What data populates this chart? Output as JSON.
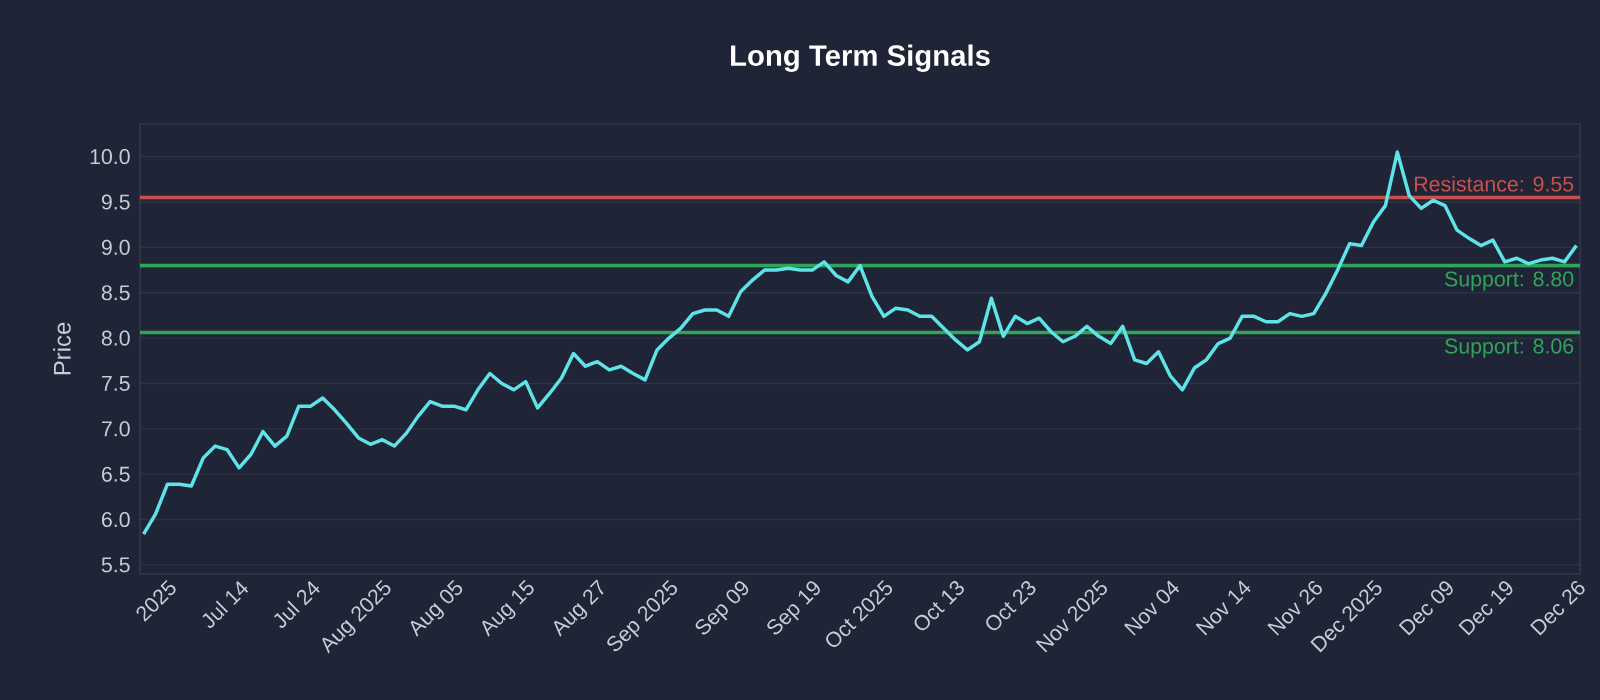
{
  "chart_data": {
    "type": "line",
    "title": "Long Term Signals",
    "ylabel": "Price",
    "categories": [
      null,
      null,
      "2025",
      null,
      null,
      null,
      null,
      null,
      "Jul 14",
      null,
      null,
      null,
      null,
      null,
      "Jul 24",
      null,
      null,
      null,
      null,
      null,
      "Aug 2025",
      null,
      null,
      null,
      null,
      null,
      "Aug 05",
      null,
      null,
      null,
      null,
      null,
      "Aug 15",
      null,
      null,
      null,
      null,
      null,
      "Aug 27",
      null,
      null,
      null,
      null,
      null,
      "Sep 2025",
      null,
      null,
      null,
      null,
      null,
      "Sep 09",
      null,
      null,
      null,
      null,
      null,
      "Sep 19",
      null,
      null,
      null,
      null,
      null,
      "Oct 2025",
      null,
      null,
      null,
      null,
      null,
      "Oct 13",
      null,
      null,
      null,
      null,
      null,
      "Oct 23",
      null,
      null,
      null,
      null,
      null,
      "Nov 2025",
      null,
      null,
      null,
      null,
      null,
      "Nov 04",
      null,
      null,
      null,
      null,
      null,
      "Nov 14",
      null,
      null,
      null,
      null,
      null,
      "Nov 26",
      null,
      null,
      null,
      null,
      "Dec 2025",
      null,
      null,
      null,
      null,
      null,
      "Dec 09",
      null,
      null,
      null,
      null,
      "Dec 19",
      null,
      null,
      null,
      null,
      null,
      "Dec 26"
    ],
    "values": [
      5.84,
      6.06,
      6.39,
      6.39,
      6.37,
      6.68,
      6.81,
      6.77,
      6.57,
      6.72,
      6.97,
      6.81,
      6.92,
      7.25,
      7.25,
      7.34,
      7.21,
      7.06,
      6.9,
      6.83,
      6.88,
      6.81,
      6.95,
      7.14,
      7.3,
      7.25,
      7.25,
      7.21,
      7.43,
      7.61,
      7.5,
      7.43,
      7.52,
      7.23,
      7.39,
      7.56,
      7.83,
      7.69,
      7.74,
      7.65,
      7.69,
      7.61,
      7.54,
      7.87,
      8.0,
      8.11,
      8.27,
      8.31,
      8.31,
      8.24,
      8.51,
      8.64,
      8.75,
      8.75,
      8.77,
      8.75,
      8.75,
      8.84,
      8.69,
      8.62,
      8.8,
      8.46,
      8.24,
      8.33,
      8.31,
      8.24,
      8.24,
      8.11,
      7.98,
      7.87,
      7.96,
      8.44,
      8.02,
      8.24,
      8.16,
      8.22,
      8.07,
      7.96,
      8.02,
      8.13,
      8.02,
      7.94,
      8.13,
      7.76,
      7.72,
      7.85,
      7.58,
      7.43,
      7.67,
      7.76,
      7.94,
      8.0,
      8.24,
      8.24,
      8.18,
      8.18,
      8.27,
      8.24,
      8.27,
      8.49,
      8.75,
      9.04,
      9.02,
      9.28,
      9.46,
      10.05,
      9.57,
      9.43,
      9.52,
      9.46,
      9.19,
      9.1,
      9.02,
      9.08,
      8.84,
      8.88,
      8.82,
      8.86,
      8.88,
      8.84,
      9.02
    ],
    "color": "#5ee3e8",
    "ylim": [
      5.4,
      10.36
    ],
    "yticks": [
      {
        "value": 5.5,
        "label": "5.5"
      },
      {
        "value": 6,
        "label": "6.0"
      },
      {
        "value": 6.5,
        "label": "6.5"
      },
      {
        "value": 7,
        "label": "7.0"
      },
      {
        "value": 7.5,
        "label": "7.5"
      },
      {
        "value": 8,
        "label": "8.0"
      },
      {
        "value": 8.5,
        "label": "8.5"
      },
      {
        "value": 9,
        "label": "9.0"
      },
      {
        "value": 9.5,
        "label": "9.5"
      },
      {
        "value": 10,
        "label": "10.0"
      }
    ],
    "grid": "y",
    "ref_lines": [
      {
        "axis": "y",
        "value": 9.55,
        "label": "Resistance: 9.55",
        "color": "#c9504c"
      },
      {
        "axis": "y",
        "value": 8.8,
        "label": "Support: 8.80",
        "color": "#2fa55a"
      },
      {
        "axis": "y",
        "value": 8.06,
        "label": "Support: 8.06",
        "color": "#2fa55a"
      }
    ]
  }
}
